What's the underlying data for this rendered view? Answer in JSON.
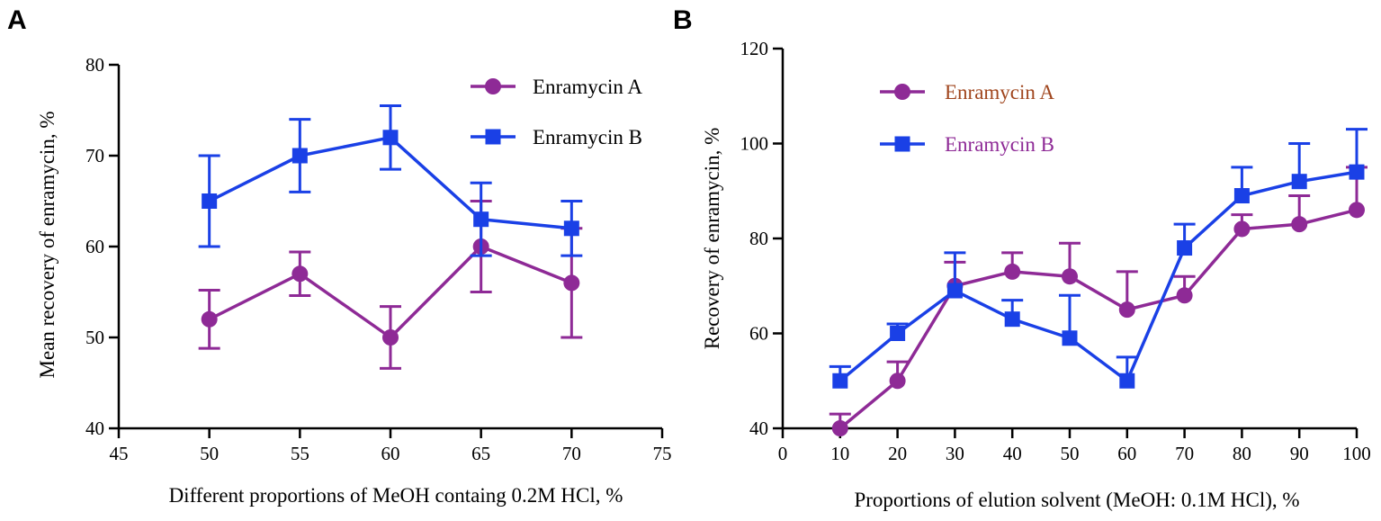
{
  "panels": [
    {
      "label": "A",
      "chart_data": {
        "type": "line",
        "xlabel": "Different proportions of MeOH containg 0.2M HCl, %",
        "ylabel": "Mean recovery of enramycin, %",
        "xlim": [
          45,
          75
        ],
        "ylim": [
          40,
          80
        ],
        "xticks": [
          45,
          50,
          55,
          60,
          65,
          70,
          75
        ],
        "yticks": [
          40,
          50,
          60,
          70,
          80
        ],
        "legend_position": "top-right",
        "series": [
          {
            "name": "Enramycin A",
            "color": "#8e2a96",
            "label_color": "#000000",
            "marker": "circle",
            "x": [
              50,
              55,
              60,
              65,
              70
            ],
            "y": [
              52,
              57,
              50,
              60,
              56
            ],
            "err": [
              3.2,
              2.4,
              3.4,
              5,
              6
            ],
            "err_mode": "both"
          },
          {
            "name": "Enramycin B",
            "color": "#1a40e6",
            "label_color": "#000000",
            "marker": "square",
            "x": [
              50,
              55,
              60,
              65,
              70
            ],
            "y": [
              65,
              70,
              72,
              63,
              62
            ],
            "err": [
              5,
              4,
              3.5,
              4,
              3
            ],
            "err_mode": "both"
          }
        ]
      }
    },
    {
      "label": "B",
      "chart_data": {
        "type": "line",
        "xlabel": "Proportions of elution solvent (MeOH: 0.1M HCl), %",
        "ylabel": "Recovery of enramycin, %",
        "xlim": [
          0,
          100
        ],
        "ylim": [
          40,
          120
        ],
        "xticks": [
          0,
          10,
          20,
          30,
          40,
          50,
          60,
          70,
          80,
          90,
          100
        ],
        "yticks": [
          40,
          60,
          80,
          100,
          120
        ],
        "legend_position": "top-left",
        "series": [
          {
            "name": "Enramycin A",
            "color": "#8e2a96",
            "label_color": "#a0461e",
            "marker": "circle",
            "x": [
              10,
              20,
              30,
              40,
              50,
              60,
              70,
              80,
              90,
              100
            ],
            "y": [
              40,
              50,
              70,
              73,
              72,
              65,
              68,
              82,
              83,
              86
            ],
            "err": [
              3,
              4,
              5,
              4,
              7,
              8,
              4,
              3,
              6,
              9
            ],
            "err_mode": "up"
          },
          {
            "name": "Enramycin B",
            "color": "#1a40e6",
            "label_color": "#8e2a96",
            "marker": "square",
            "x": [
              10,
              20,
              30,
              40,
              50,
              60,
              70,
              80,
              90,
              100
            ],
            "y": [
              50,
              60,
              69,
              63,
              59,
              50,
              78,
              89,
              92,
              94
            ],
            "err": [
              3,
              2,
              8,
              4,
              9,
              5,
              5,
              6,
              8,
              9
            ],
            "err_mode": "up"
          }
        ]
      }
    }
  ]
}
